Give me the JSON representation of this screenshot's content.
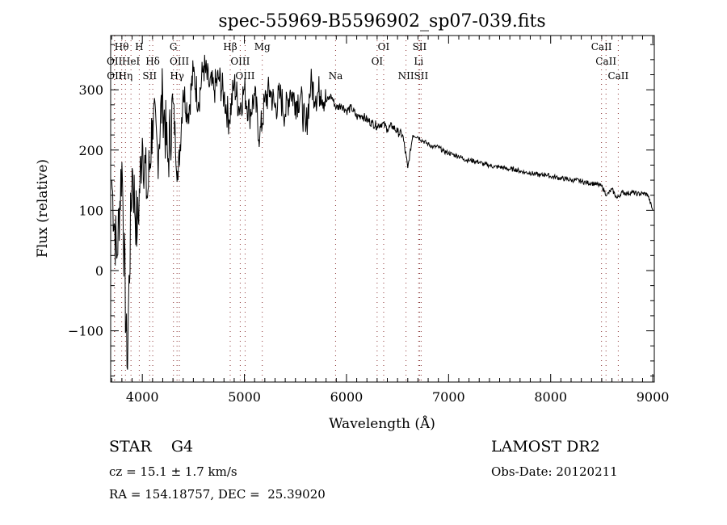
{
  "chart_data": {
    "type": "line",
    "title": "spec-55969-B5596902_sp07-039.fits",
    "xlabel": "Wavelength (Å)",
    "ylabel": "Flux (relative)",
    "xlim": [
      3690,
      9015
    ],
    "ylim": [
      -185,
      390
    ],
    "xticks": [
      4000,
      5000,
      6000,
      7000,
      8000,
      9000
    ],
    "yticks": [
      -100,
      0,
      100,
      200,
      300
    ],
    "ytick_labels": [
      "−100",
      "0",
      "100",
      "200",
      "300"
    ],
    "grid": false,
    "series": [
      {
        "name": "spectrum",
        "x_start": 3700,
        "x_step": 50,
        "values": [
          150,
          20,
          180,
          -160,
          170,
          60,
          220,
          120,
          250,
          200,
          290,
          180,
          280,
          150,
          300,
          260,
          330,
          280,
          340,
          310,
          300,
          320,
          290,
          250,
          310,
          270,
          300,
          260,
          290,
          220,
          280,
          300,
          270,
          290,
          260,
          300,
          280,
          290,
          230,
          310,
          290,
          300,
          280,
          290,
          270,
          275,
          265,
          270,
          255,
          258,
          250,
          245,
          240,
          245,
          235,
          240,
          230,
          225,
          170,
          225,
          222,
          215,
          210,
          205,
          205,
          198,
          195,
          192,
          190,
          185,
          183,
          182,
          180,
          176,
          175,
          172,
          172,
          170,
          168,
          168,
          165,
          163,
          162,
          160,
          158,
          160,
          156,
          155,
          153,
          152,
          150,
          150,
          148,
          146,
          145,
          143,
          140,
          125,
          135,
          120,
          130,
          128,
          130,
          127,
          128,
          126,
          100
        ]
      }
    ],
    "line_markers": [
      {
        "label": "Hθ",
        "wave": 3798,
        "row": 0
      },
      {
        "label": "H",
        "wave": 3970,
        "row": 0
      },
      {
        "label": "G",
        "wave": 4305,
        "row": 0
      },
      {
        "label": "Hβ",
        "wave": 4861,
        "row": 0
      },
      {
        "label": "Mg",
        "wave": 5175,
        "row": 0
      },
      {
        "label": "OI",
        "wave": 6364,
        "row": 0
      },
      {
        "label": "SII",
        "wave": 6716,
        "row": 0
      },
      {
        "label": "CaII",
        "wave": 8498,
        "row": 0
      },
      {
        "label": "OII",
        "wave": 3727,
        "row": 1
      },
      {
        "label": "HeI",
        "wave": 3889,
        "row": 1
      },
      {
        "label": "Hδ",
        "wave": 4102,
        "row": 1
      },
      {
        "label": "OIII",
        "wave": 4363,
        "row": 1
      },
      {
        "label": "OIII",
        "wave": 4959,
        "row": 1
      },
      {
        "label": "OI",
        "wave": 6300,
        "row": 1
      },
      {
        "label": "Li",
        "wave": 6707,
        "row": 1
      },
      {
        "label": "CaII",
        "wave": 8542,
        "row": 1
      },
      {
        "label": "OII",
        "wave": 3729,
        "row": 2
      },
      {
        "label": "Hη",
        "wave": 3835,
        "row": 2
      },
      {
        "label": "SII",
        "wave": 4072,
        "row": 2
      },
      {
        "label": "Hγ",
        "wave": 4340,
        "row": 2
      },
      {
        "label": "OIII",
        "wave": 5007,
        "row": 2
      },
      {
        "label": "Na",
        "wave": 5893,
        "row": 2
      },
      {
        "label": "NII",
        "wave": 6583,
        "row": 2
      },
      {
        "label": "SII",
        "wave": 6731,
        "row": 2
      },
      {
        "label": "CaII",
        "wave": 8662,
        "row": 2
      }
    ]
  },
  "info": {
    "object_class": "STAR",
    "subclass": "G4",
    "cz": "cz = 15.1 ± 1.7 km/s",
    "coords": "RA = 154.18757, DEC =  25.39020",
    "survey": "LAMOST DR2",
    "obs_date": "Obs-Date: 20120211"
  }
}
